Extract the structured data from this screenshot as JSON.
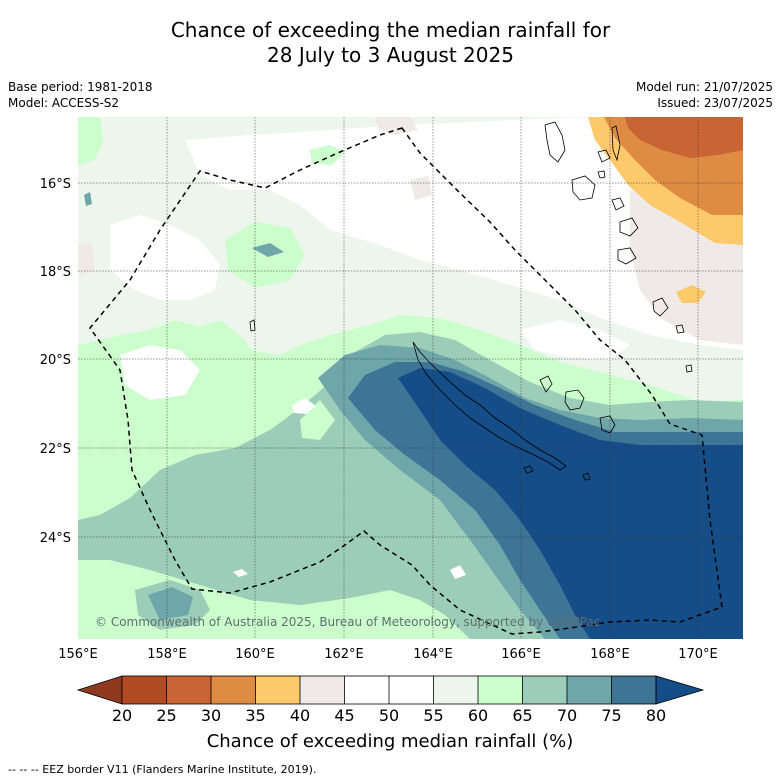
{
  "header": {
    "title_line1": "Chance of exceeding the median rainfall for",
    "title_line2": "28 July to 3 August 2025",
    "base_period": "Base period: 1981-2018",
    "model": "Model: ACCESS-S2",
    "model_run": "Model run: 21/07/2025",
    "issued": "Issued: 23/07/2025"
  },
  "map": {
    "copyright": "© Commonwealth of Australia 2025, Bureau of Meteorology, supported by COSPPac"
  },
  "colorbar": {
    "title": "Chance of exceeding median rainfall (%)"
  },
  "footnote": "--  --  -- EEZ border V11 (Flanders Marine Institute, 2019).",
  "colors": {
    "c20_25": "#b24a23",
    "c25_30": "#c96434",
    "c30_35": "#de8c43",
    "c35_40": "#fec96a",
    "c40_45": "#efe9e7",
    "c45_55": "#ffffff",
    "c55_60": "#edf6ed",
    "c60_65": "#ccfdcc",
    "c65_70": "#9ccdb8",
    "c70_75": "#6fa6aa",
    "c75_80": "#3e7597",
    "c80_plus": "#144d88",
    "c_below20": "#8f3a1e"
  },
  "chart_data": {
    "type": "heatmap",
    "title": "Chance of exceeding the median rainfall for 28 July to 3 August 2025",
    "xlabel": "",
    "ylabel": "",
    "x_ticks": [
      "156°E",
      "158°E",
      "160°E",
      "162°E",
      "164°E",
      "166°E",
      "168°E",
      "170°E"
    ],
    "y_ticks": [
      "16°S",
      "18°S",
      "20°S",
      "22°S",
      "24°S"
    ],
    "x_range": [
      156,
      171
    ],
    "y_range": [
      -26.2,
      -14.4
    ],
    "grid": true,
    "colorbar_ticks": [
      "20",
      "25",
      "30",
      "35",
      "40",
      "45",
      "50",
      "55",
      "60",
      "65",
      "70",
      "75",
      "80"
    ],
    "colorbar_label": "Chance of exceeding median rainfall (%)",
    "levels": [
      {
        "range": "20-25",
        "color": "#b24a23"
      },
      {
        "range": "25-30",
        "color": "#c96434"
      },
      {
        "range": "30-35",
        "color": "#de8c43"
      },
      {
        "range": "35-40",
        "color": "#fec96a"
      },
      {
        "range": "40-45",
        "color": "#efe9e7"
      },
      {
        "range": "45-50",
        "color": "#ffffff"
      },
      {
        "range": "50-55",
        "color": "#ffffff"
      },
      {
        "range": "55-60",
        "color": "#edf6ed"
      },
      {
        "range": "60-65",
        "color": "#ccfdcc"
      },
      {
        "range": "65-70",
        "color": "#9ccdb8"
      },
      {
        "range": "70-75",
        "color": "#6fa6aa"
      },
      {
        "range": "75-80",
        "color": "#3e7597"
      },
      {
        "range": ">80",
        "color": "#144d88"
      }
    ]
  }
}
